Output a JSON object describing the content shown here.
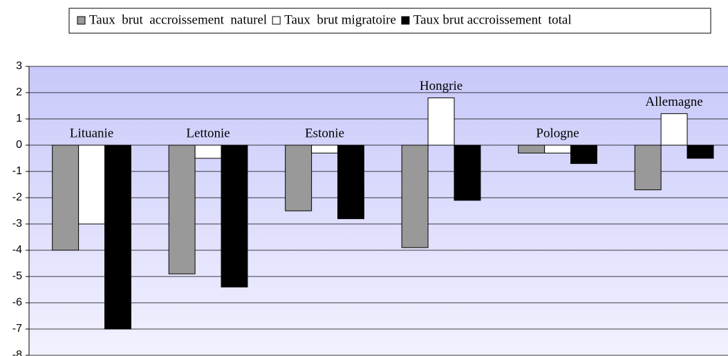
{
  "chart_data": {
    "type": "bar",
    "categories": [
      "Lituanie",
      "Lettonie",
      "Estonie",
      "Hongrie",
      "Pologne",
      "Allemagne"
    ],
    "series": [
      {
        "name": "Taux  brut  accroissement  naturel",
        "color": "#999999",
        "values": [
          -4,
          -4.9,
          -2.5,
          -3.9,
          -0.3,
          -1.7
        ]
      },
      {
        "name": "Taux  brut migratoire",
        "color": "#ffffff",
        "values": [
          -3,
          -0.5,
          -0.3,
          1.8,
          -0.3,
          1.2
        ]
      },
      {
        "name": "Taux brut accroissement  total",
        "color": "#000000",
        "values": [
          -7,
          -5.4,
          -2.8,
          -2.1,
          -0.7,
          -0.5
        ]
      }
    ],
    "ylim": [
      -8,
      3
    ],
    "yticks": [
      -8,
      -7,
      -6,
      -5,
      -4,
      -3,
      -2,
      -1,
      0,
      1,
      2,
      3
    ],
    "grid": true,
    "legend": "top"
  }
}
